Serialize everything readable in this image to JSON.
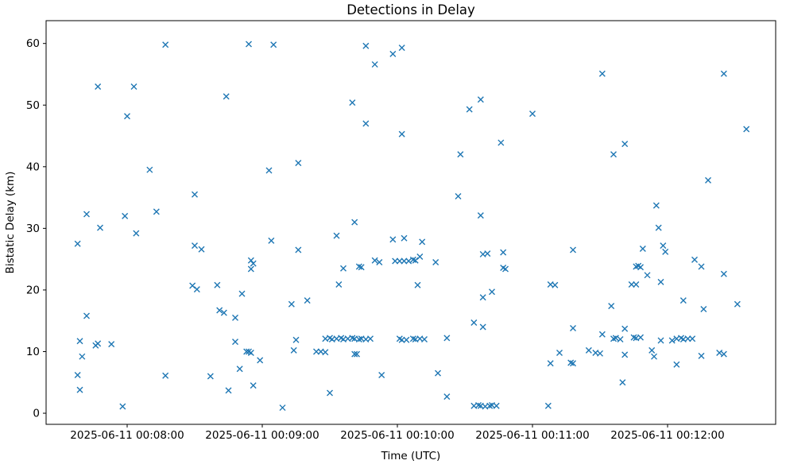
{
  "chart_data": {
    "type": "scatter",
    "title": "Detections in Delay",
    "xlabel": "Time (UTC)",
    "ylabel": "Bistatic Delay (km)",
    "legend": "none",
    "grid": false,
    "marker": {
      "shape": "x",
      "color": "#1f77b4",
      "size": 7
    },
    "x_axis": {
      "date": "2025-06-11",
      "start_time": "00:07:24",
      "end_time": "00:12:48",
      "ticks": [
        {
          "time": "00:08:00",
          "label": "2025-06-11 00:08:00"
        },
        {
          "time": "00:09:00",
          "label": "2025-06-11 00:09:00"
        },
        {
          "time": "00:10:00",
          "label": "2025-06-11 00:10:00"
        },
        {
          "time": "00:11:00",
          "label": "2025-06-11 00:11:00"
        },
        {
          "time": "00:12:00",
          "label": "2025-06-11 00:12:00"
        }
      ]
    },
    "y_axis": {
      "ticks": [
        0,
        10,
        20,
        30,
        40,
        50,
        60
      ],
      "lim": [
        -1.8,
        63.7
      ]
    },
    "points": [
      [
        "00:08:17",
        59.8
      ],
      [
        "00:07:47",
        53.0
      ],
      [
        "00:08:03",
        53.0
      ],
      [
        "00:08:00",
        48.2
      ],
      [
        "00:08:44",
        51.4
      ],
      [
        "00:08:54",
        59.9
      ],
      [
        "00:09:05",
        59.8
      ],
      [
        "00:09:46",
        59.6
      ],
      [
        "00:10:02",
        59.3
      ],
      [
        "00:09:58",
        58.3
      ],
      [
        "00:09:50",
        56.6
      ],
      [
        "00:09:40",
        50.4
      ],
      [
        "00:09:46",
        47.0
      ],
      [
        "00:10:02",
        45.3
      ],
      [
        "00:10:37",
        50.9
      ],
      [
        "00:10:32",
        49.3
      ],
      [
        "00:11:00",
        48.6
      ],
      [
        "00:10:46",
        43.9
      ],
      [
        "00:10:28",
        42.0
      ],
      [
        "00:11:31",
        55.1
      ],
      [
        "00:12:25",
        55.1
      ],
      [
        "00:12:35",
        46.1
      ],
      [
        "00:11:41",
        43.7
      ],
      [
        "00:11:36",
        42.0
      ],
      [
        "00:08:10",
        39.5
      ],
      [
        "00:08:30",
        35.5
      ],
      [
        "00:07:42",
        32.3
      ],
      [
        "00:07:59",
        32.0
      ],
      [
        "00:08:13",
        32.7
      ],
      [
        "00:07:48",
        30.1
      ],
      [
        "00:08:04",
        29.2
      ],
      [
        "00:07:38",
        27.5
      ],
      [
        "00:08:30",
        27.2
      ],
      [
        "00:08:33",
        26.6
      ],
      [
        "00:08:29",
        20.7
      ],
      [
        "00:08:31",
        20.1
      ],
      [
        "00:08:40",
        20.8
      ],
      [
        "00:09:16",
        40.6
      ],
      [
        "00:09:03",
        39.4
      ],
      [
        "00:09:41",
        31.0
      ],
      [
        "00:09:33",
        28.8
      ],
      [
        "00:09:58",
        28.2
      ],
      [
        "00:10:03",
        28.4
      ],
      [
        "00:09:04",
        28.0
      ],
      [
        "00:09:16",
        26.5
      ],
      [
        "00:08:55",
        24.8
      ],
      [
        "00:08:56",
        24.3
      ],
      [
        "00:08:55",
        23.4
      ],
      [
        "00:09:36",
        23.5
      ],
      [
        "00:09:43",
        23.8
      ],
      [
        "00:09:44",
        23.7
      ],
      [
        "00:09:50",
        24.8
      ],
      [
        "00:09:52",
        24.5
      ],
      [
        "00:09:59",
        24.7
      ],
      [
        "00:10:01",
        24.7
      ],
      [
        "00:10:03",
        24.7
      ],
      [
        "00:10:05",
        24.7
      ],
      [
        "00:09:34",
        20.9
      ],
      [
        "00:10:27",
        35.2
      ],
      [
        "00:10:37",
        32.1
      ],
      [
        "00:10:11",
        27.8
      ],
      [
        "00:10:07",
        24.9
      ],
      [
        "00:10:08",
        24.8
      ],
      [
        "00:10:10",
        25.4
      ],
      [
        "00:10:17",
        24.5
      ],
      [
        "00:10:38",
        25.8
      ],
      [
        "00:10:40",
        25.9
      ],
      [
        "00:10:47",
        26.1
      ],
      [
        "00:10:47",
        23.6
      ],
      [
        "00:10:48",
        23.4
      ],
      [
        "00:11:18",
        26.5
      ],
      [
        "00:10:09",
        20.8
      ],
      [
        "00:11:08",
        20.9
      ],
      [
        "00:11:10",
        20.8
      ],
      [
        "00:12:18",
        37.8
      ],
      [
        "00:11:55",
        33.7
      ],
      [
        "00:11:56",
        30.1
      ],
      [
        "00:11:49",
        26.7
      ],
      [
        "00:11:58",
        27.2
      ],
      [
        "00:11:59",
        26.2
      ],
      [
        "00:12:12",
        24.9
      ],
      [
        "00:12:15",
        23.8
      ],
      [
        "00:12:25",
        22.6
      ],
      [
        "00:11:46",
        23.8
      ],
      [
        "00:11:47",
        23.9
      ],
      [
        "00:11:48",
        23.7
      ],
      [
        "00:11:51",
        22.4
      ],
      [
        "00:11:44",
        20.9
      ],
      [
        "00:11:46",
        20.9
      ],
      [
        "00:11:57",
        21.3
      ],
      [
        "00:08:41",
        16.7
      ],
      [
        "00:08:43",
        16.3
      ],
      [
        "00:07:42",
        15.8
      ],
      [
        "00:07:39",
        11.7
      ],
      [
        "00:07:46",
        11.0
      ],
      [
        "00:07:47",
        11.3
      ],
      [
        "00:07:53",
        11.2
      ],
      [
        "00:07:40",
        9.2
      ],
      [
        "00:07:38",
        6.2
      ],
      [
        "00:07:39",
        3.8
      ],
      [
        "00:08:17",
        6.1
      ],
      [
        "00:08:37",
        6.0
      ],
      [
        "00:08:45",
        3.7
      ],
      [
        "00:07:58",
        1.1
      ],
      [
        "00:08:51",
        19.4
      ],
      [
        "00:09:13",
        17.7
      ],
      [
        "00:09:20",
        18.3
      ],
      [
        "00:08:48",
        15.5
      ],
      [
        "00:09:28",
        12.1
      ],
      [
        "00:09:30",
        12.2
      ],
      [
        "00:09:31",
        12.0
      ],
      [
        "00:09:33",
        12.1
      ],
      [
        "00:09:35",
        12.2
      ],
      [
        "00:09:36",
        12.0
      ],
      [
        "00:09:38",
        12.1
      ],
      [
        "00:09:40",
        12.2
      ],
      [
        "00:09:41",
        12.1
      ],
      [
        "00:09:43",
        12.0
      ],
      [
        "00:09:44",
        12.1
      ],
      [
        "00:09:46",
        12.0
      ],
      [
        "00:09:48",
        12.1
      ],
      [
        "00:10:01",
        12.1
      ],
      [
        "00:10:02",
        11.9
      ],
      [
        "00:10:04",
        11.9
      ],
      [
        "00:08:48",
        11.6
      ],
      [
        "00:09:15",
        11.9
      ],
      [
        "00:09:14",
        10.2
      ],
      [
        "00:08:53",
        10.0
      ],
      [
        "00:08:54",
        10.0
      ],
      [
        "00:08:55",
        9.8
      ],
      [
        "00:09:24",
        10.0
      ],
      [
        "00:09:26",
        10.0
      ],
      [
        "00:09:28",
        9.9
      ],
      [
        "00:09:41",
        9.6
      ],
      [
        "00:09:42",
        9.6
      ],
      [
        "00:08:59",
        8.6
      ],
      [
        "00:08:50",
        7.2
      ],
      [
        "00:09:53",
        6.2
      ],
      [
        "00:08:56",
        4.5
      ],
      [
        "00:09:30",
        3.3
      ],
      [
        "00:09:09",
        0.9
      ],
      [
        "00:10:38",
        18.8
      ],
      [
        "00:10:42",
        19.7
      ],
      [
        "00:10:34",
        14.7
      ],
      [
        "00:10:38",
        14.0
      ],
      [
        "00:11:18",
        13.8
      ],
      [
        "00:10:07",
        12.1
      ],
      [
        "00:10:08",
        12.0
      ],
      [
        "00:10:10",
        12.1
      ],
      [
        "00:10:12",
        12.0
      ],
      [
        "00:10:22",
        12.2
      ],
      [
        "00:11:12",
        9.8
      ],
      [
        "00:11:25",
        10.2
      ],
      [
        "00:11:08",
        8.1
      ],
      [
        "00:11:17",
        8.2
      ],
      [
        "00:11:18",
        8.1
      ],
      [
        "00:10:18",
        6.5
      ],
      [
        "00:10:22",
        2.7
      ],
      [
        "00:10:34",
        1.2
      ],
      [
        "00:10:36",
        1.3
      ],
      [
        "00:10:37",
        1.2
      ],
      [
        "00:10:39",
        1.1
      ],
      [
        "00:10:41",
        1.2
      ],
      [
        "00:10:42",
        1.3
      ],
      [
        "00:10:44",
        1.2
      ],
      [
        "00:11:07",
        1.2
      ],
      [
        "00:11:35",
        17.4
      ],
      [
        "00:12:07",
        18.3
      ],
      [
        "00:12:16",
        16.9
      ],
      [
        "00:12:31",
        17.7
      ],
      [
        "00:11:41",
        13.7
      ],
      [
        "00:11:31",
        12.8
      ],
      [
        "00:11:36",
        12.1
      ],
      [
        "00:11:37",
        12.2
      ],
      [
        "00:11:39",
        12.0
      ],
      [
        "00:11:45",
        12.3
      ],
      [
        "00:11:46",
        12.2
      ],
      [
        "00:11:48",
        12.3
      ],
      [
        "00:11:57",
        11.8
      ],
      [
        "00:12:02",
        11.8
      ],
      [
        "00:12:04",
        12.1
      ],
      [
        "00:12:06",
        12.2
      ],
      [
        "00:12:07",
        12.0
      ],
      [
        "00:12:09",
        12.1
      ],
      [
        "00:12:11",
        12.1
      ],
      [
        "00:11:28",
        9.8
      ],
      [
        "00:11:30",
        9.7
      ],
      [
        "00:11:41",
        9.5
      ],
      [
        "00:11:53",
        10.2
      ],
      [
        "00:11:54",
        9.2
      ],
      [
        "00:12:15",
        9.3
      ],
      [
        "00:12:23",
        9.8
      ],
      [
        "00:12:25",
        9.6
      ],
      [
        "00:12:04",
        7.9
      ],
      [
        "00:11:40",
        5.0
      ]
    ]
  }
}
